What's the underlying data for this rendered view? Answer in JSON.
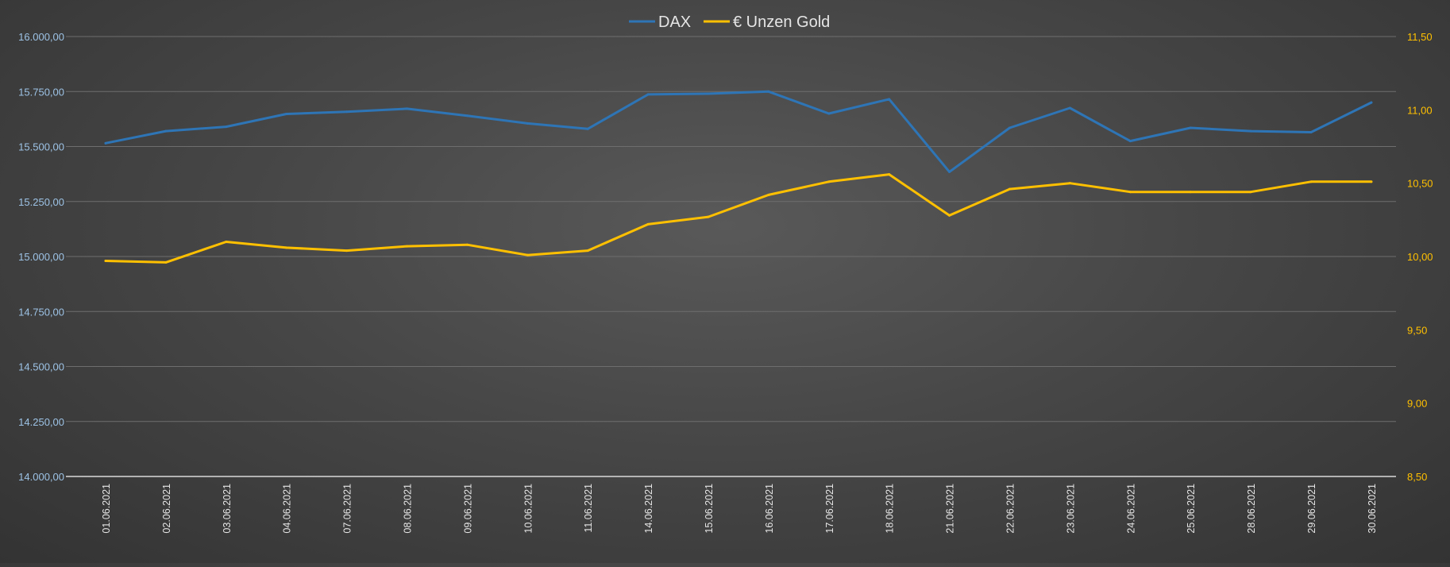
{
  "chart_data": {
    "type": "line",
    "title": "",
    "legend_position": "top-center",
    "grid": true,
    "categories": [
      "01.06.2021",
      "02.06.2021",
      "03.06.2021",
      "04.06.2021",
      "07.06.2021",
      "08.06.2021",
      "09.06.2021",
      "10.06.2021",
      "11.06.2021",
      "14.06.2021",
      "15.06.2021",
      "16.06.2021",
      "17.06.2021",
      "18.06.2021",
      "21.06.2021",
      "22.06.2021",
      "23.06.2021",
      "24.06.2021",
      "25.06.2021",
      "28.06.2021",
      "29.06.2021",
      "30.06.2021"
    ],
    "y_left": {
      "min": 14000,
      "max": 16000,
      "ticks": [
        14000,
        14250,
        14500,
        14750,
        15000,
        15250,
        15500,
        15750,
        16000
      ],
      "tick_labels": [
        "14.000,00",
        "14.250,00",
        "14.500,00",
        "14.750,00",
        "15.000,00",
        "15.250,00",
        "15.500,00",
        "15.750,00",
        "16.000,00"
      ],
      "label_color": "#9dc3e6"
    },
    "y_right": {
      "min": 8.5,
      "max": 11.5,
      "ticks": [
        8.5,
        9.0,
        9.5,
        10.0,
        10.5,
        11.0,
        11.5
      ],
      "tick_labels": [
        "8,50",
        "9,00",
        "9,50",
        "10,00",
        "10,50",
        "11,00",
        "11,50"
      ],
      "label_color": "#ffc000"
    },
    "series": [
      {
        "name": "DAX",
        "axis": "left",
        "color": "#2e75b6",
        "values": [
          15515,
          15570,
          15590,
          15648,
          15658,
          15672,
          15640,
          15605,
          15580,
          15737,
          15740,
          15750,
          15650,
          15715,
          15385,
          15585,
          15675,
          15525,
          15585,
          15570,
          15565,
          15700
        ]
      },
      {
        "name": "€ Unzen Gold",
        "axis": "right",
        "color": "#ffc000",
        "values": [
          9.97,
          9.96,
          10.1,
          10.06,
          10.04,
          10.07,
          10.08,
          10.01,
          10.04,
          10.22,
          10.27,
          10.42,
          10.51,
          10.56,
          10.28,
          10.46,
          10.5,
          10.44,
          10.44,
          10.44,
          10.51,
          10.51
        ]
      }
    ]
  }
}
